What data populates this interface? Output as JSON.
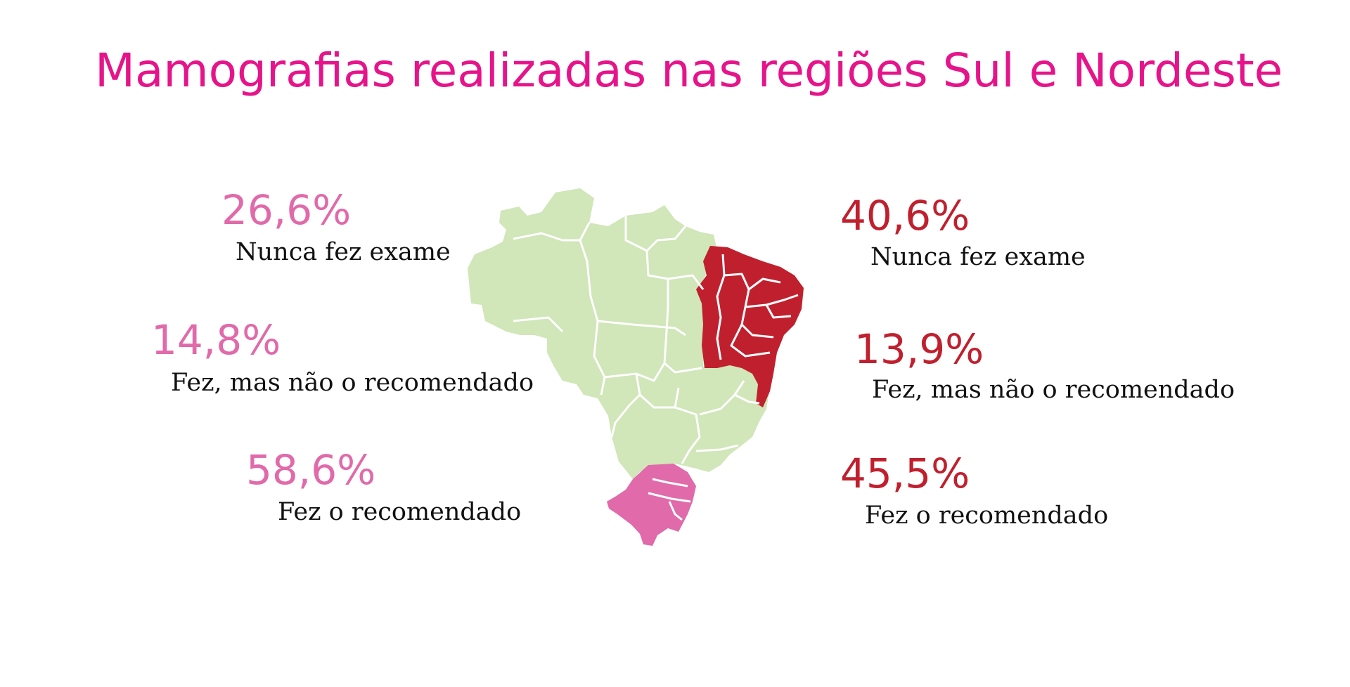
{
  "title": "Mamografias realizadas nas regiões Sul e Nordeste",
  "colors": {
    "title": "#e6148a",
    "sul": "#e06aaa",
    "nordeste": "#c0202e",
    "other_regions": "#d1e6b9",
    "borders": "#ffffff"
  },
  "sul": {
    "items": [
      {
        "value": "26,6%",
        "label": "Nunca fez exame"
      },
      {
        "value": "14,8%",
        "label": "Fez, mas não o recomendado"
      },
      {
        "value": "58,6%",
        "label": "Fez o recomendado"
      }
    ]
  },
  "nordeste": {
    "items": [
      {
        "value": "40,6%",
        "label": "Nunca fez exame"
      },
      {
        "value": "13,9%",
        "label": "Fez, mas não o recomendado"
      },
      {
        "value": "45,5%",
        "label": "Fez o recomendado"
      }
    ]
  }
}
